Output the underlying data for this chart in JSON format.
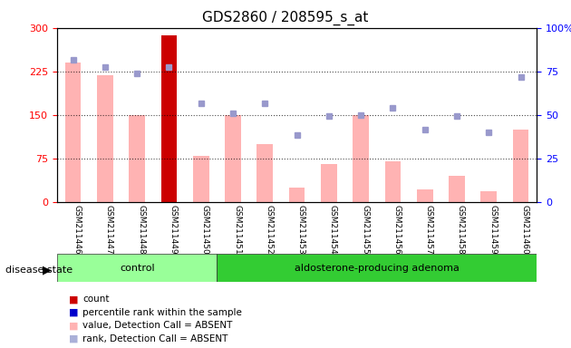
{
  "title": "GDS2860 / 208595_s_at",
  "samples": [
    "GSM211446",
    "GSM211447",
    "GSM211448",
    "GSM211449",
    "GSM211450",
    "GSM211451",
    "GSM211452",
    "GSM211453",
    "GSM211454",
    "GSM211455",
    "GSM211456",
    "GSM211457",
    "GSM211458",
    "GSM211459",
    "GSM211460"
  ],
  "groups": {
    "control": [
      "GSM211446",
      "GSM211447",
      "GSM211448",
      "GSM211449",
      "GSM211450"
    ],
    "adenoma": [
      "GSM211451",
      "GSM211452",
      "GSM211453",
      "GSM211454",
      "GSM211455",
      "GSM211456",
      "GSM211457",
      "GSM211458",
      "GSM211459",
      "GSM211460"
    ]
  },
  "bar_values": [
    240,
    218,
    150,
    287,
    80,
    150,
    100,
    25,
    65,
    150,
    70,
    22,
    45,
    18,
    125
  ],
  "bar_colors": [
    "#ffb3b3",
    "#ffb3b3",
    "#ffb3b3",
    "#cc0000",
    "#ffb3b3",
    "#ffb3b3",
    "#ffb3b3",
    "#ffb3b3",
    "#ffb3b3",
    "#ffb3b3",
    "#ffb3b3",
    "#ffb3b3",
    "#ffb3b3",
    "#ffb3b3",
    "#ffb3b3"
  ],
  "rank_values": [
    245,
    232,
    222,
    233,
    170,
    152,
    170,
    115,
    148,
    150,
    162,
    125,
    148,
    120,
    215
  ],
  "ylim_left": [
    0,
    300
  ],
  "ylim_right": [
    0,
    100
  ],
  "yticks_left": [
    0,
    75,
    150,
    225,
    300
  ],
  "yticks_right": [
    0,
    25,
    50,
    75,
    100
  ],
  "control_color": "#99ff99",
  "adenoma_color": "#33cc33",
  "group_label": "disease state",
  "legend_items": [
    {
      "label": "count",
      "color": "#cc0000",
      "marker": "s"
    },
    {
      "label": "percentile rank within the sample",
      "color": "#0000cc",
      "marker": "s"
    },
    {
      "label": "value, Detection Call = ABSENT",
      "color": "#ffb3b3",
      "marker": "s"
    },
    {
      "label": "rank, Detection Call = ABSENT",
      "color": "#aab0d8",
      "marker": "s"
    }
  ],
  "bg_color": "#ffffff",
  "plot_bg_color": "#ffffff",
  "tick_area_color": "#cccccc"
}
